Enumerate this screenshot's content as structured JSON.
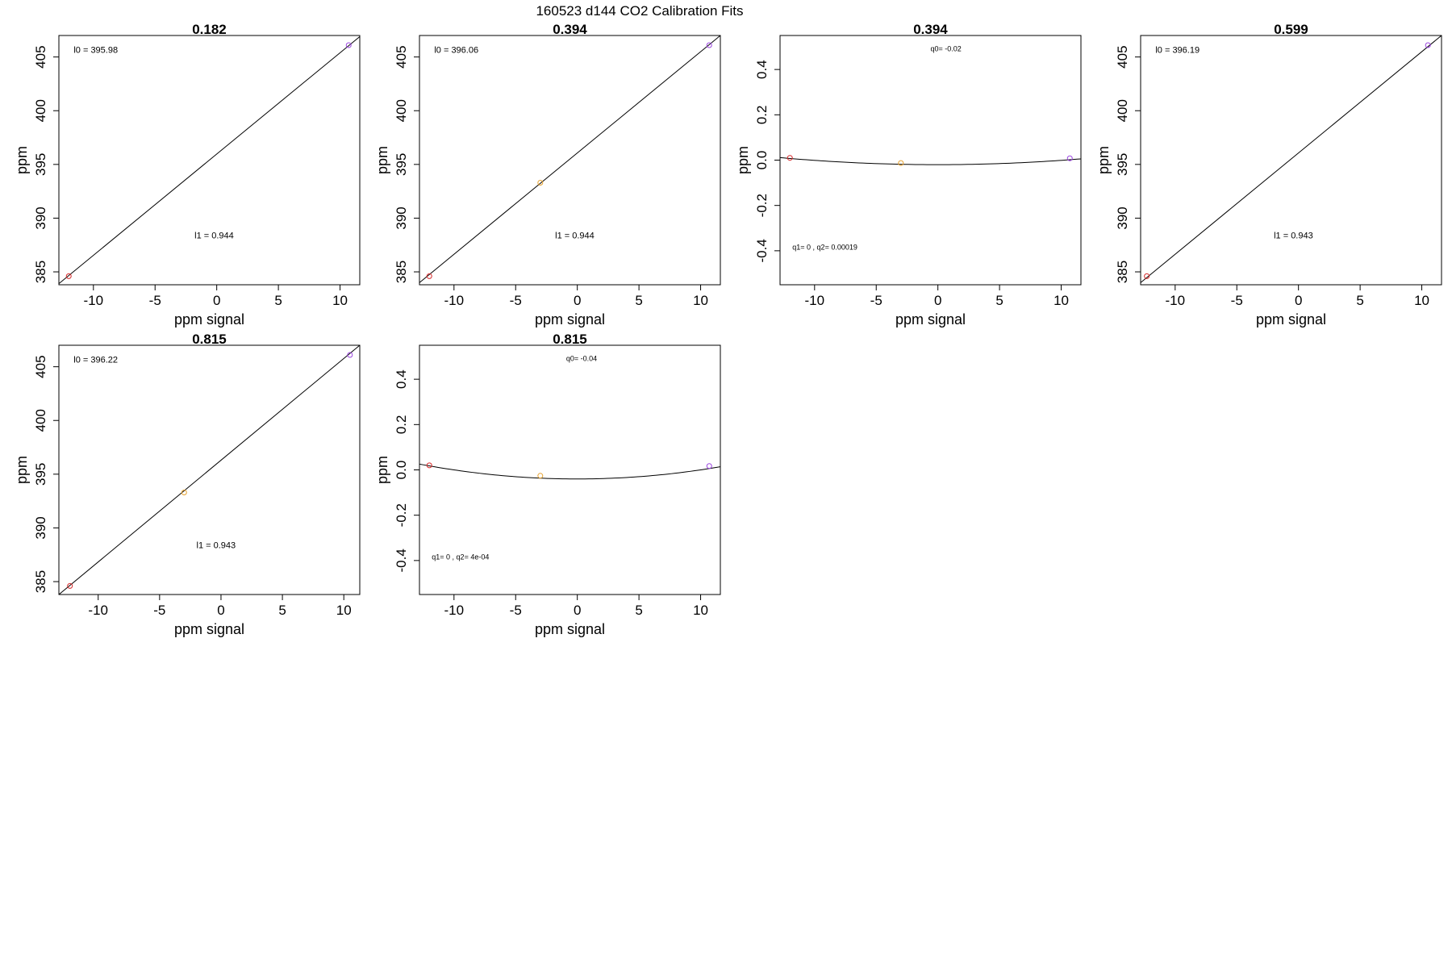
{
  "figure": {
    "title": "160523   d144   CO2 Calibration Fits"
  },
  "colors": {
    "low_point": "#d62728",
    "mid_point": "#e6a12e",
    "high_point": "#9b45e0",
    "fit_line": "#000000"
  },
  "chart_data": [
    {
      "type": "scatter",
      "fit": "linear",
      "title": "0.182",
      "xlabel": "ppm signal",
      "ylabel": "ppm",
      "xlim": [
        -12.8,
        11.6
      ],
      "ylim": [
        383.8,
        407.0
      ],
      "xticks": [
        -10,
        -5,
        0,
        5,
        10
      ],
      "yticks": [
        385,
        390,
        395,
        400,
        405
      ],
      "points": [
        {
          "x": -12.0,
          "y": 384.6,
          "color_key": "low_point"
        },
        {
          "x": 10.7,
          "y": 406.1,
          "color_key": "high_point"
        }
      ],
      "fit_line": [
        [
          -12.8,
          383.9
        ],
        [
          11.6,
          406.9
        ]
      ],
      "annotations": [
        {
          "text": "l0 =  395.98",
          "x": -11.6,
          "y": 405.4
        },
        {
          "text": "l1 =  0.944",
          "x": -1.8,
          "y": 388.1
        }
      ]
    },
    {
      "type": "scatter",
      "fit": "linear",
      "title": "0.394",
      "xlabel": "ppm signal",
      "ylabel": "ppm",
      "xlim": [
        -12.8,
        11.6
      ],
      "ylim": [
        383.8,
        407.0
      ],
      "xticks": [
        -10,
        -5,
        0,
        5,
        10
      ],
      "yticks": [
        385,
        390,
        395,
        400,
        405
      ],
      "points": [
        {
          "x": -12.0,
          "y": 384.6,
          "color_key": "low_point"
        },
        {
          "x": -3.0,
          "y": 393.3,
          "color_key": "mid_point"
        },
        {
          "x": 10.7,
          "y": 406.1,
          "color_key": "high_point"
        }
      ],
      "fit_line": [
        [
          -12.8,
          384.0
        ],
        [
          11.6,
          407.0
        ]
      ],
      "annotations": [
        {
          "text": "l0 =  396.06",
          "x": -11.6,
          "y": 405.4
        },
        {
          "text": "l1 =  0.944",
          "x": -1.8,
          "y": 388.1
        }
      ]
    },
    {
      "type": "scatter",
      "fit": "quadratic",
      "title": "0.394",
      "xlabel": "ppm signal",
      "ylabel": "ppm",
      "xlim": [
        -12.8,
        11.6
      ],
      "ylim": [
        -0.55,
        0.55
      ],
      "xticks": [
        -10,
        -5,
        0,
        5,
        10
      ],
      "yticks": [
        -0.4,
        -0.2,
        0.0,
        0.2,
        0.4
      ],
      "points": [
        {
          "x": -12.0,
          "y": 0.01,
          "color_key": "low_point"
        },
        {
          "x": -3.0,
          "y": -0.013,
          "color_key": "mid_point"
        },
        {
          "x": 10.7,
          "y": 0.008,
          "color_key": "high_point"
        }
      ],
      "quad_fit": {
        "q0": -0.02,
        "q1": 0,
        "q2": 0.00019
      },
      "annotations": [
        {
          "text": "q0= -0.02",
          "x": -0.6,
          "y": 0.48
        },
        {
          "text": "q1= 0 ,  q2= 0.00019",
          "x": -11.8,
          "y": -0.395
        }
      ]
    },
    {
      "type": "scatter",
      "fit": "linear",
      "title": "0.599",
      "xlabel": "ppm signal",
      "ylabel": "ppm",
      "xlim": [
        -12.8,
        11.6
      ],
      "ylim": [
        383.8,
        407.0
      ],
      "xticks": [
        -10,
        -5,
        0,
        5,
        10
      ],
      "yticks": [
        385,
        390,
        395,
        400,
        405
      ],
      "points": [
        {
          "x": -12.3,
          "y": 384.6,
          "color_key": "low_point"
        },
        {
          "x": 10.5,
          "y": 406.1,
          "color_key": "high_point"
        }
      ],
      "fit_line": [
        [
          -12.8,
          384.0
        ],
        [
          11.6,
          407.0
        ]
      ],
      "annotations": [
        {
          "text": "l0 =  396.19",
          "x": -11.6,
          "y": 405.4
        },
        {
          "text": "l1 =  0.943",
          "x": -2.0,
          "y": 388.1
        }
      ]
    },
    {
      "type": "scatter",
      "fit": "linear",
      "title": "0.815",
      "xlabel": "ppm signal",
      "ylabel": "ppm",
      "xlim": [
        -13.2,
        11.3
      ],
      "ylim": [
        383.8,
        407.0
      ],
      "xticks": [
        -10,
        -5,
        0,
        5,
        10
      ],
      "yticks": [
        385,
        390,
        395,
        400,
        405
      ],
      "points": [
        {
          "x": -12.3,
          "y": 384.6,
          "color_key": "low_point"
        },
        {
          "x": -3.0,
          "y": 393.3,
          "color_key": "mid_point"
        },
        {
          "x": 10.5,
          "y": 406.1,
          "color_key": "high_point"
        }
      ],
      "fit_line": [
        [
          -13.2,
          383.8
        ],
        [
          11.3,
          407.0
        ]
      ],
      "annotations": [
        {
          "text": "l0 =  396.22",
          "x": -12.0,
          "y": 405.4
        },
        {
          "text": "l1 =  0.943",
          "x": -2.0,
          "y": 388.1
        }
      ]
    },
    {
      "type": "scatter",
      "fit": "quadratic",
      "title": "0.815",
      "xlabel": "ppm signal",
      "ylabel": "ppm",
      "xlim": [
        -12.8,
        11.6
      ],
      "ylim": [
        -0.55,
        0.55
      ],
      "xticks": [
        -10,
        -5,
        0,
        5,
        10
      ],
      "yticks": [
        -0.4,
        -0.2,
        0.0,
        0.2,
        0.4
      ],
      "points": [
        {
          "x": -12.0,
          "y": 0.02,
          "color_key": "low_point"
        },
        {
          "x": -3.0,
          "y": -0.026,
          "color_key": "mid_point"
        },
        {
          "x": 10.7,
          "y": 0.017,
          "color_key": "high_point"
        }
      ],
      "quad_fit": {
        "q0": -0.04,
        "q1": 0,
        "q2": 0.0004
      },
      "annotations": [
        {
          "text": "q0= -0.04",
          "x": -0.9,
          "y": 0.48
        },
        {
          "text": "q1= 0 ,  q2= 4e-04",
          "x": -11.8,
          "y": -0.395
        }
      ]
    }
  ]
}
